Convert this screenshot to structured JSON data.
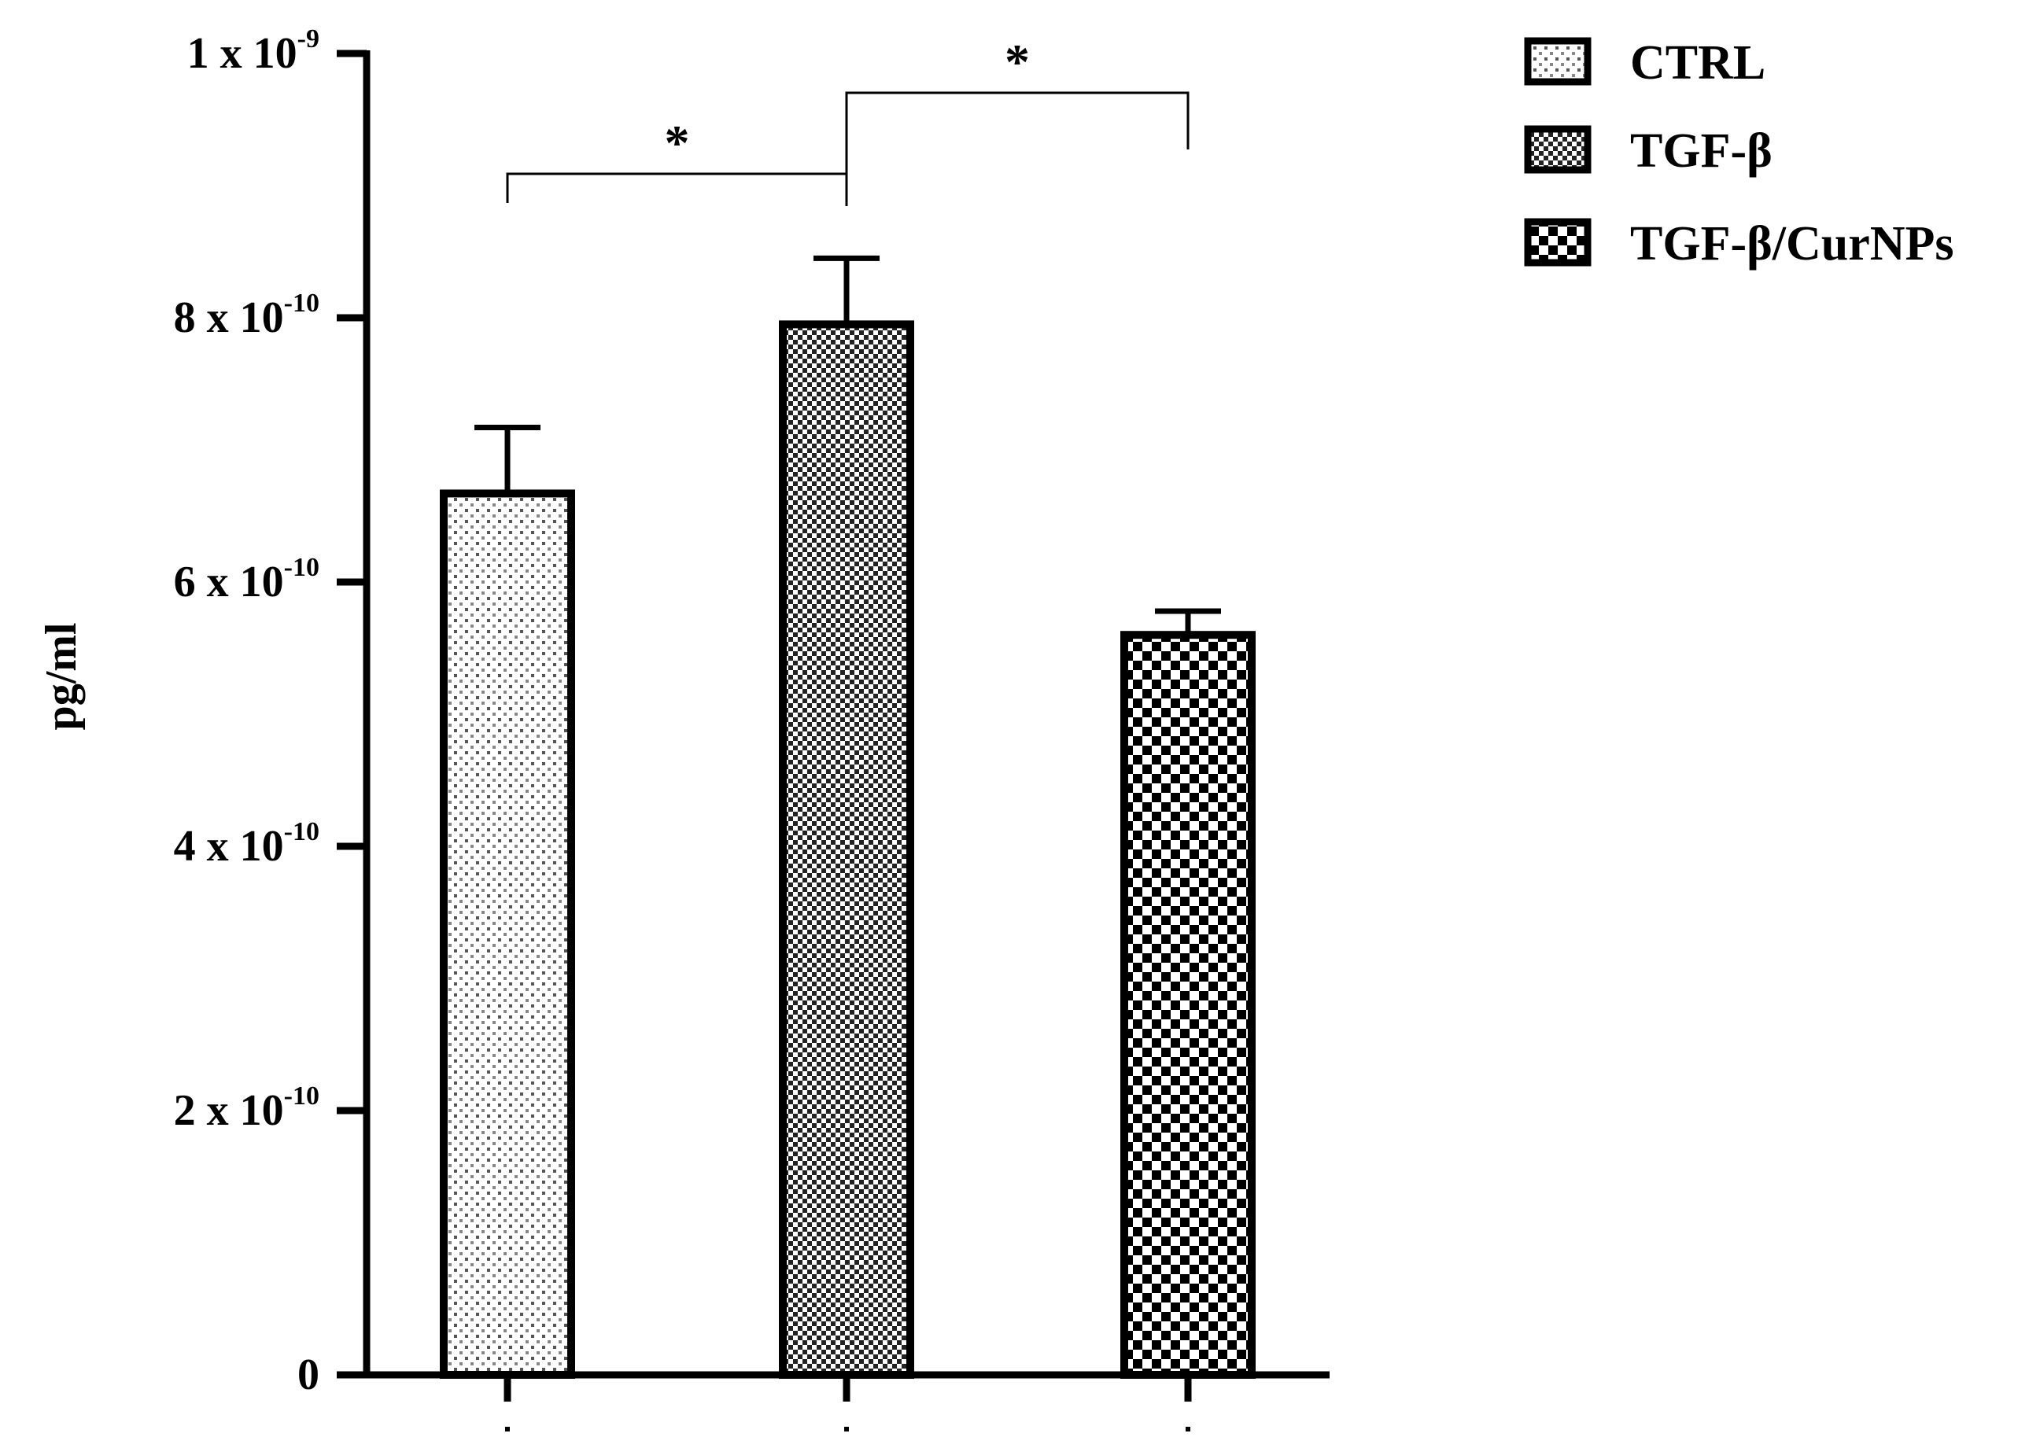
{
  "chart_data": {
    "type": "bar",
    "ylabel": "pg/ml",
    "ylim": [
      0,
      1e-09
    ],
    "yticks": [
      {
        "value": 0,
        "mantissa": "0",
        "exponent": ""
      },
      {
        "value": 2e-10,
        "mantissa": "2 x 10",
        "exponent": "-10"
      },
      {
        "value": 4e-10,
        "mantissa": "4 x 10",
        "exponent": "-10"
      },
      {
        "value": 6e-10,
        "mantissa": "6 x 10",
        "exponent": "-10"
      },
      {
        "value": 8e-10,
        "mantissa": "8 x 10",
        "exponent": "-10"
      },
      {
        "value": 1e-09,
        "mantissa": "1 x 10",
        "exponent": "-9"
      }
    ],
    "series": [
      {
        "name": "CTRL",
        "value": 6.67e-10,
        "error": 5e-11,
        "pattern": "dots"
      },
      {
        "name": "TGF-β",
        "value": 7.95e-10,
        "error": 5e-11,
        "pattern": "fine-check"
      },
      {
        "name": "TGF-β/CurNPs",
        "value": 5.6e-10,
        "error": 1.8e-11,
        "pattern": "coarse-check"
      }
    ],
    "significance": [
      {
        "from": 0,
        "to": 1,
        "label": "*"
      },
      {
        "from": 1,
        "to": 2,
        "label": "*"
      }
    ],
    "legend_position": "top-right",
    "grid": false
  }
}
